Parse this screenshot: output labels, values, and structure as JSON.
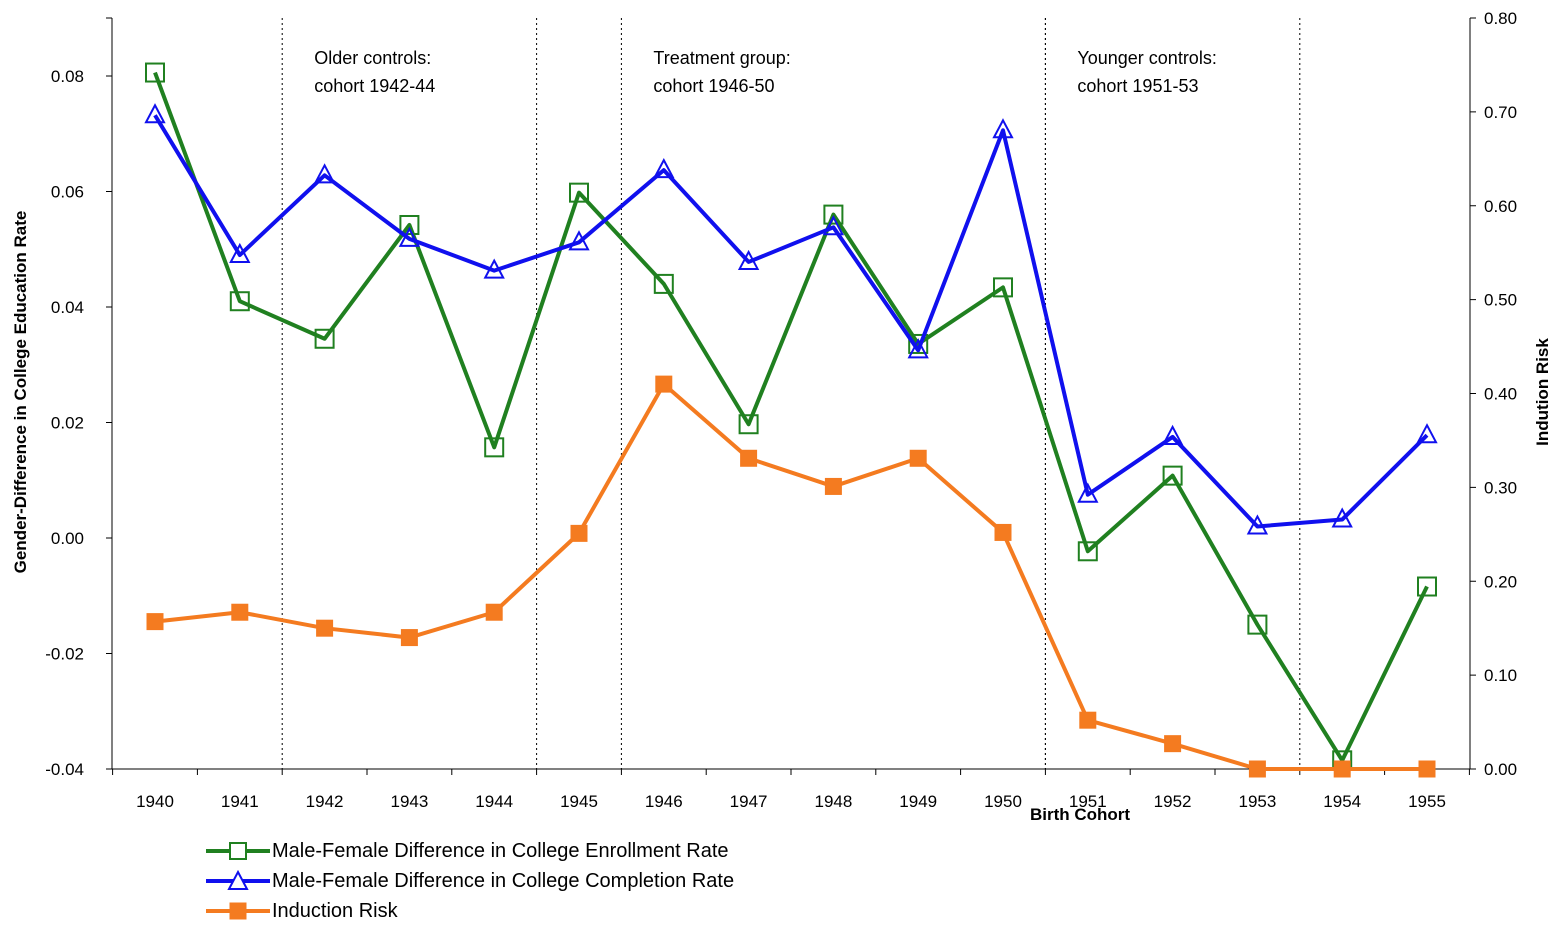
{
  "chart_data": {
    "type": "line",
    "title": "",
    "xlabel": "Birth Cohort",
    "ylabel": "Gender-Difference in College Education Rate",
    "y2label": "Indution Risk",
    "x": [
      "1940",
      "1941",
      "1942",
      "1943",
      "1944",
      "1945",
      "1946",
      "1947",
      "1948",
      "1949",
      "1950",
      "1951",
      "1952",
      "1953",
      "1954",
      "1955"
    ],
    "ylim": [
      -0.04,
      0.09
    ],
    "y2lim": [
      0.0,
      0.8
    ],
    "yticks": [
      "0.08",
      "0.06",
      "0.04",
      "0.02",
      "0.00",
      "-0.02",
      "-0.04"
    ],
    "y2ticks": [
      "0.80",
      "0.70",
      "0.60",
      "0.50",
      "0.40",
      "0.30",
      "0.20",
      "0.10",
      "0.00"
    ],
    "grid": false,
    "legend_position": "bottom-left",
    "series": [
      {
        "name": "Male-Female Difference in College Enrollment Rate",
        "axis": "left",
        "color": "#208020",
        "marker": "open-square",
        "values": [
          0.0806,
          0.041,
          0.0345,
          0.0542,
          0.0157,
          0.0598,
          0.044,
          0.0197,
          0.056,
          0.0336,
          0.0434,
          -0.0023,
          0.0108,
          -0.015,
          -0.0385,
          -0.0084
        ]
      },
      {
        "name": "Male-Female Difference in College Completion Rate",
        "axis": "left",
        "color": "#1010ee",
        "marker": "open-triangle",
        "values": [
          0.0732,
          0.049,
          0.0628,
          0.0518,
          0.0463,
          0.0512,
          0.0637,
          0.0478,
          0.0538,
          0.0325,
          0.0706,
          0.0075,
          0.0175,
          0.002,
          0.0032,
          0.0178
        ]
      },
      {
        "name": "Induction Risk",
        "axis": "right",
        "color": "#f47b20",
        "marker": "filled-square",
        "values": [
          0.157,
          0.167,
          0.15,
          0.14,
          0.167,
          0.251,
          0.41,
          0.331,
          0.301,
          0.331,
          0.252,
          0.052,
          0.027,
          0.0,
          0.0,
          0.0
        ]
      }
    ],
    "annotations": [
      {
        "lines": [
          "Older controls:",
          "cohort 1942-44"
        ],
        "from": "1942",
        "to": "1944"
      },
      {
        "lines": [
          "Treatment group:",
          "cohort 1946-50"
        ],
        "from": "1946",
        "to": "1950"
      },
      {
        "lines": [
          "Younger controls:",
          "cohort 1951-53"
        ],
        "from": "1951",
        "to": "1953"
      }
    ]
  }
}
